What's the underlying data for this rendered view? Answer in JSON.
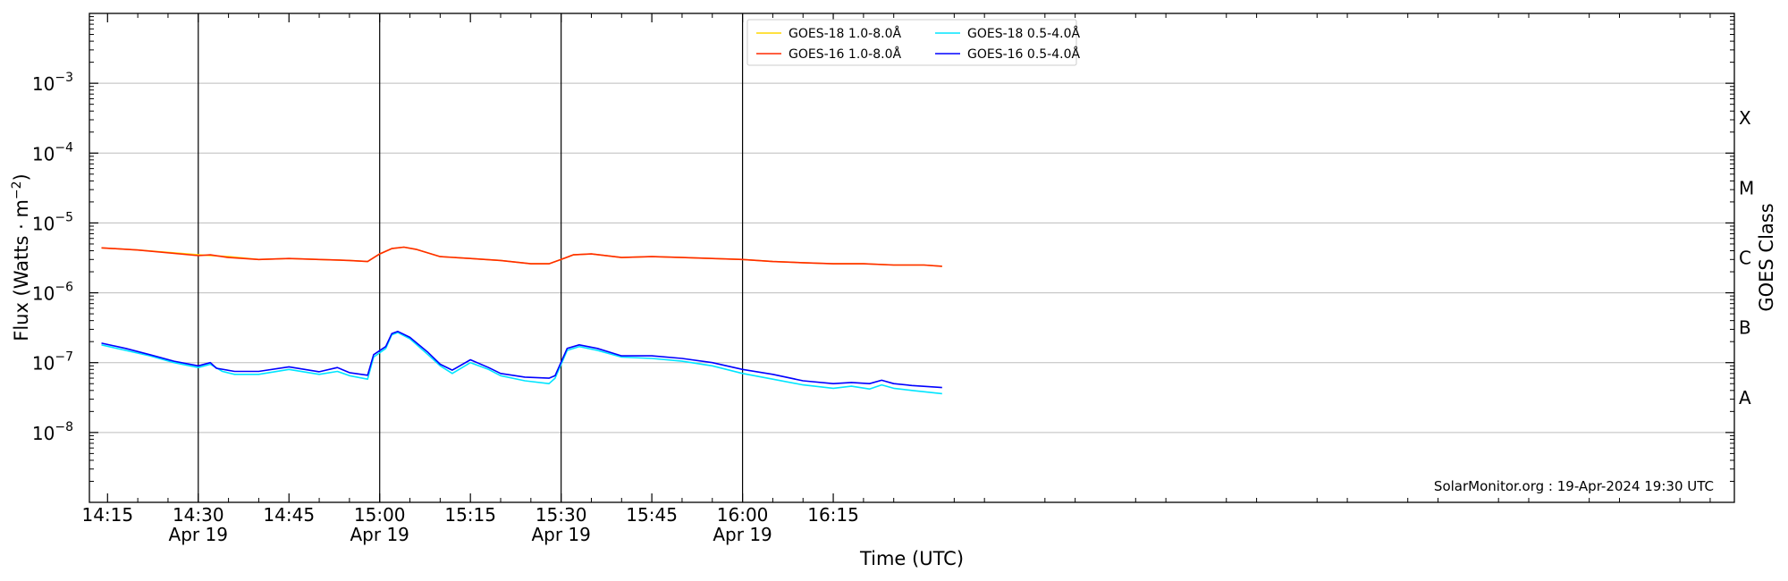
{
  "chart_data": {
    "type": "line",
    "xlabel": "Time (UTC)",
    "ylabel": "Flux (Watts · m",
    "ylabel_sup": "−2",
    "ylabel_close": ")",
    "right_label": "GOES Class",
    "credit": "SolarMonitor.org : 19-Apr-2024 19:30 UTC",
    "y_scale": "log",
    "ylim": [
      1e-09,
      0.01
    ],
    "x_range_minutes": [
      252,
      524
    ],
    "x_ticks": [
      {
        "t": 255,
        "label": "14:15",
        "sub": ""
      },
      {
        "t": 270,
        "label": "14:30",
        "sub": "Apr 19"
      },
      {
        "t": 285,
        "label": "14:45",
        "sub": ""
      },
      {
        "t": 300,
        "label": "15:00",
        "sub": "Apr 19"
      },
      {
        "t": 315,
        "label": "15:15",
        "sub": ""
      },
      {
        "t": 330,
        "label": "15:30",
        "sub": "Apr 19"
      },
      {
        "t": 345,
        "label": "15:45",
        "sub": ""
      },
      {
        "t": 360,
        "label": "16:00",
        "sub": "Apr 19"
      },
      {
        "t": 375,
        "label": "16:15",
        "sub": ""
      }
    ],
    "y_ticks": [
      {
        "exp": -8,
        "label": "10",
        "sup": "−8"
      },
      {
        "exp": -7,
        "label": "10",
        "sup": "−7"
      },
      {
        "exp": -6,
        "label": "10",
        "sup": "−6"
      },
      {
        "exp": -5,
        "label": "10",
        "sup": "−5"
      },
      {
        "exp": -4,
        "label": "10",
        "sup": "−4"
      },
      {
        "exp": -3,
        "label": "10",
        "sup": "−3"
      }
    ],
    "goes_classes": [
      {
        "label": "A",
        "exp": -7.5
      },
      {
        "label": "B",
        "exp": -6.5
      },
      {
        "label": "C",
        "exp": -5.5
      },
      {
        "label": "M",
        "exp": -4.5
      },
      {
        "label": "X",
        "exp": -3.5
      }
    ],
    "vertical_lines_minutes": [
      270,
      300,
      330,
      360
    ],
    "grid": "horizontal",
    "legend_position": "top-center",
    "series": [
      {
        "name": "GOES-18 1.0-8.0Å",
        "color": "#ffd700",
        "x": [
          254,
          260,
          270,
          275,
          280,
          285,
          290,
          295,
          298,
          300,
          302,
          304,
          306,
          310,
          315,
          320,
          325,
          328,
          330,
          332,
          335,
          340,
          345,
          350,
          355,
          360,
          365,
          370,
          375,
          380,
          385,
          390,
          393
        ],
        "y": [
          4.4e-06,
          4.1e-06,
          3.5e-06,
          3.3e-06,
          3e-06,
          3.1e-06,
          3e-06,
          2.9e-06,
          2.8e-06,
          3.6e-06,
          4.3e-06,
          4.5e-06,
          4.2e-06,
          3.3e-06,
          3.1e-06,
          2.9e-06,
          2.6e-06,
          2.6e-06,
          3e-06,
          3.5e-06,
          3.6e-06,
          3.2e-06,
          3.3e-06,
          3.2e-06,
          3.1e-06,
          3e-06,
          2.8e-06,
          2.7e-06,
          2.6e-06,
          2.6e-06,
          2.5e-06,
          2.5e-06,
          2.4e-06
        ]
      },
      {
        "name": "GOES-16 1.0-8.0Å",
        "color": "#ff2a00",
        "x": [
          254,
          260,
          270,
          272,
          275,
          280,
          285,
          290,
          295,
          298,
          300,
          302,
          304,
          306,
          310,
          315,
          320,
          325,
          328,
          330,
          332,
          335,
          340,
          345,
          350,
          355,
          360,
          365,
          370,
          375,
          380,
          385,
          390,
          393
        ],
        "y": [
          4.4e-06,
          4.1e-06,
          3.4e-06,
          3.5e-06,
          3.2e-06,
          3e-06,
          3.1e-06,
          3e-06,
          2.9e-06,
          2.8e-06,
          3.6e-06,
          4.3e-06,
          4.5e-06,
          4.2e-06,
          3.3e-06,
          3.1e-06,
          2.9e-06,
          2.6e-06,
          2.6e-06,
          3e-06,
          3.5e-06,
          3.6e-06,
          3.2e-06,
          3.3e-06,
          3.2e-06,
          3.1e-06,
          3e-06,
          2.8e-06,
          2.7e-06,
          2.6e-06,
          2.6e-06,
          2.5e-06,
          2.5e-06,
          2.4e-06
        ]
      },
      {
        "name": "GOES-18 0.5-4.0Å",
        "color": "#00e5ff",
        "x": [
          254,
          258,
          262,
          266,
          270,
          272,
          274,
          276,
          280,
          285,
          290,
          293,
          295,
          298,
          299,
          301,
          302,
          303,
          305,
          308,
          310,
          312,
          315,
          318,
          320,
          324,
          328,
          329,
          331,
          333,
          336,
          340,
          345,
          350,
          355,
          360,
          365,
          370,
          375,
          378,
          381,
          383,
          385,
          388,
          393
        ],
        "y": [
          1.8e-07,
          1.5e-07,
          1.25e-07,
          1e-07,
          8.5e-08,
          9.5e-08,
          7.5e-08,
          6.8e-08,
          6.8e-08,
          8e-08,
          6.8e-08,
          7.5e-08,
          6.5e-08,
          5.8e-08,
          1.2e-07,
          1.6e-07,
          2.5e-07,
          2.7e-07,
          2.2e-07,
          1.3e-07,
          9e-08,
          7e-08,
          1e-07,
          8e-08,
          6.5e-08,
          5.5e-08,
          5e-08,
          6e-08,
          1.5e-07,
          1.7e-07,
          1.5e-07,
          1.2e-07,
          1.15e-07,
          1.05e-07,
          9e-08,
          7e-08,
          5.8e-08,
          4.8e-08,
          4.3e-08,
          4.6e-08,
          4.2e-08,
          4.8e-08,
          4.3e-08,
          4e-08,
          3.6e-08
        ]
      },
      {
        "name": "GOES-16 0.5-4.0Å",
        "color": "#0000ff",
        "x": [
          254,
          258,
          262,
          266,
          270,
          272,
          273,
          276,
          280,
          285,
          290,
          293,
          295,
          298,
          299,
          301,
          302,
          303,
          305,
          308,
          310,
          312,
          315,
          318,
          320,
          324,
          328,
          329,
          331,
          333,
          336,
          340,
          345,
          350,
          355,
          360,
          365,
          370,
          375,
          378,
          381,
          383,
          385,
          388,
          393
        ],
        "y": [
          1.9e-07,
          1.6e-07,
          1.3e-07,
          1.05e-07,
          9e-08,
          1e-07,
          8.3e-08,
          7.5e-08,
          7.5e-08,
          8.7e-08,
          7.4e-08,
          8.5e-08,
          7.2e-08,
          6.6e-08,
          1.3e-07,
          1.7e-07,
          2.6e-07,
          2.8e-07,
          2.3e-07,
          1.4e-07,
          9.5e-08,
          7.8e-08,
          1.1e-07,
          8.5e-08,
          7e-08,
          6.2e-08,
          6e-08,
          6.5e-08,
          1.6e-07,
          1.8e-07,
          1.6e-07,
          1.25e-07,
          1.25e-07,
          1.15e-07,
          1e-07,
          8e-08,
          6.8e-08,
          5.5e-08,
          5e-08,
          5.2e-08,
          5e-08,
          5.6e-08,
          5e-08,
          4.7e-08,
          4.4e-08
        ]
      }
    ]
  }
}
